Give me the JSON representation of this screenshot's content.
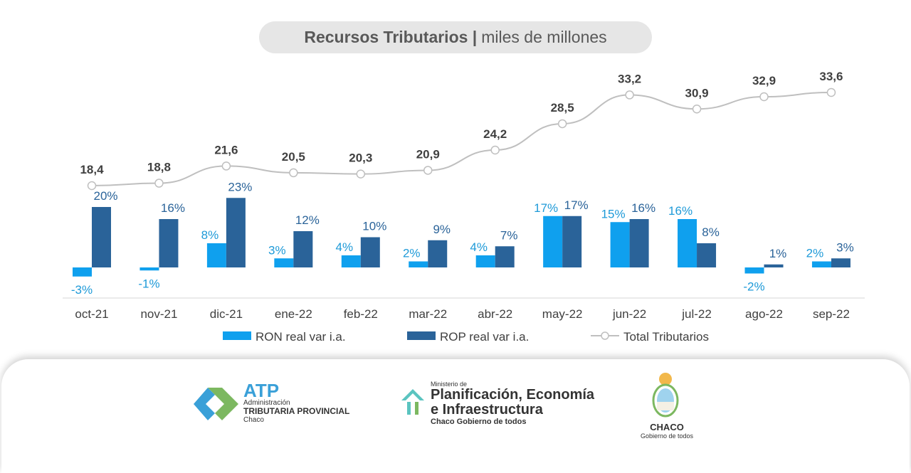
{
  "chart_data": {
    "type": "bar+line",
    "title": "Recursos Tributarios",
    "subtitle": "miles de millones",
    "categories": [
      "oct-21",
      "nov-21",
      "dic-21",
      "ene-22",
      "feb-22",
      "mar-22",
      "abr-22",
      "may-22",
      "jun-22",
      "jul-22",
      "ago-22",
      "sep-22"
    ],
    "series": [
      {
        "name": "RON real var i.a.",
        "type": "bar",
        "color": "#0fa0ee",
        "values": [
          -3,
          -1,
          8,
          3,
          4,
          2,
          4,
          17,
          15,
          16,
          -2,
          2
        ],
        "labels": [
          "-3%",
          "-1%",
          "8%",
          "3%",
          "4%",
          "2%",
          "4%",
          "17%",
          "15%",
          "16%",
          "-2%",
          "2%"
        ]
      },
      {
        "name": "ROP real var i.a.",
        "type": "bar",
        "color": "#2a6399",
        "values": [
          20,
          16,
          23,
          12,
          10,
          9,
          7,
          17,
          16,
          8,
          1,
          3
        ],
        "labels": [
          "20%",
          "16%",
          "23%",
          "12%",
          "10%",
          "9%",
          "7%",
          "17%",
          "16%",
          "8%",
          "1%",
          "3%"
        ]
      },
      {
        "name": "Total Tributarios",
        "type": "line",
        "color": "#bfbfbf",
        "values": [
          18.4,
          18.8,
          21.6,
          20.5,
          20.3,
          20.9,
          24.2,
          28.5,
          33.2,
          30.9,
          32.9,
          33.6
        ],
        "labels": [
          "18,4",
          "18,8",
          "21,6",
          "20,5",
          "20,3",
          "20,9",
          "24,2",
          "28,5",
          "33,2",
          "30,9",
          "32,9",
          "33,6"
        ]
      }
    ],
    "legend": "bottom",
    "grid": false
  },
  "footer": {
    "atp": {
      "name": "ATP",
      "line1": "Administración",
      "line2": "TRIBUTARIA PROVINCIAL",
      "line3": "Chaco"
    },
    "ministerio": {
      "pre": "Ministerio de",
      "line1": "Planificación, Economía",
      "line2": "e Infraestructura",
      "line3": "Chaco Gobierno de todos"
    },
    "chaco": {
      "name": "CHACO",
      "tagline": "Gobierno de todos"
    }
  }
}
